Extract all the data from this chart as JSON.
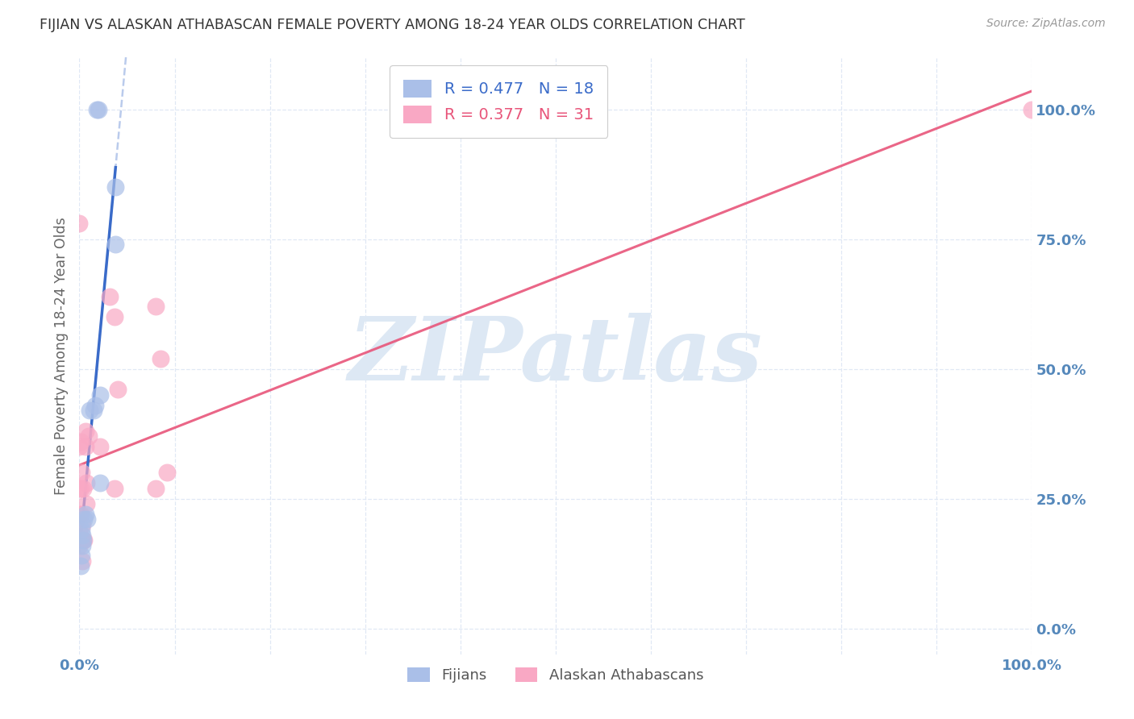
{
  "title": "FIJIAN VS ALASKAN ATHABASCAN FEMALE POVERTY AMONG 18-24 YEAR OLDS CORRELATION CHART",
  "source": "Source: ZipAtlas.com",
  "ylabel": "Female Poverty Among 18-24 Year Olds",
  "background_color": "#ffffff",
  "fijian_color": "#aabfe8",
  "alaskan_color": "#f9a8c4",
  "fijian_line_color": "#3a6bc9",
  "alaskan_line_color": "#e8557a",
  "fijian_x": [
    0.018,
    0.02,
    0.022,
    0.022,
    0.017,
    0.011,
    0.008,
    0.006,
    0.005,
    0.004,
    0.003,
    0.003,
    0.002,
    0.002,
    0.001,
    0.015,
    0.038,
    0.038
  ],
  "fijian_y": [
    1.0,
    1.0,
    0.45,
    0.28,
    0.43,
    0.42,
    0.21,
    0.22,
    0.21,
    0.17,
    0.18,
    0.16,
    0.19,
    0.14,
    0.12,
    0.42,
    0.85,
    0.74
  ],
  "alaskan_x": [
    0.0,
    0.0,
    0.0,
    0.0,
    0.0,
    0.0,
    0.001,
    0.001,
    0.001,
    0.002,
    0.002,
    0.003,
    0.003,
    0.004,
    0.004,
    0.005,
    0.006,
    0.006,
    0.007,
    0.007,
    0.01,
    0.022,
    0.032,
    0.037,
    0.037,
    0.04,
    0.08,
    0.08,
    0.085,
    0.092,
    1.0
  ],
  "alaskan_y": [
    0.78,
    0.35,
    0.27,
    0.22,
    0.19,
    0.16,
    0.36,
    0.27,
    0.22,
    0.3,
    0.17,
    0.2,
    0.13,
    0.27,
    0.17,
    0.17,
    0.38,
    0.35,
    0.28,
    0.24,
    0.37,
    0.35,
    0.64,
    0.6,
    0.27,
    0.46,
    0.62,
    0.27,
    0.52,
    0.3,
    1.0
  ],
  "xlim": [
    0.0,
    1.0
  ],
  "ylim": [
    -0.05,
    1.1
  ],
  "yticks": [
    0.0,
    0.25,
    0.5,
    0.75,
    1.0
  ],
  "ytick_labels": [
    "0.0%",
    "25.0%",
    "50.0%",
    "75.0%",
    "100.0%"
  ],
  "title_color": "#333333",
  "axis_label_color": "#666666",
  "tick_color": "#5588bb",
  "grid_color": "#e0e8f5",
  "legend_fijian_label": "R = 0.477   N = 18",
  "legend_alaskan_label": "R = 0.377   N = 31",
  "bottom_legend_fijian": "Fijians",
  "bottom_legend_alaskan": "Alaskan Athabascans"
}
